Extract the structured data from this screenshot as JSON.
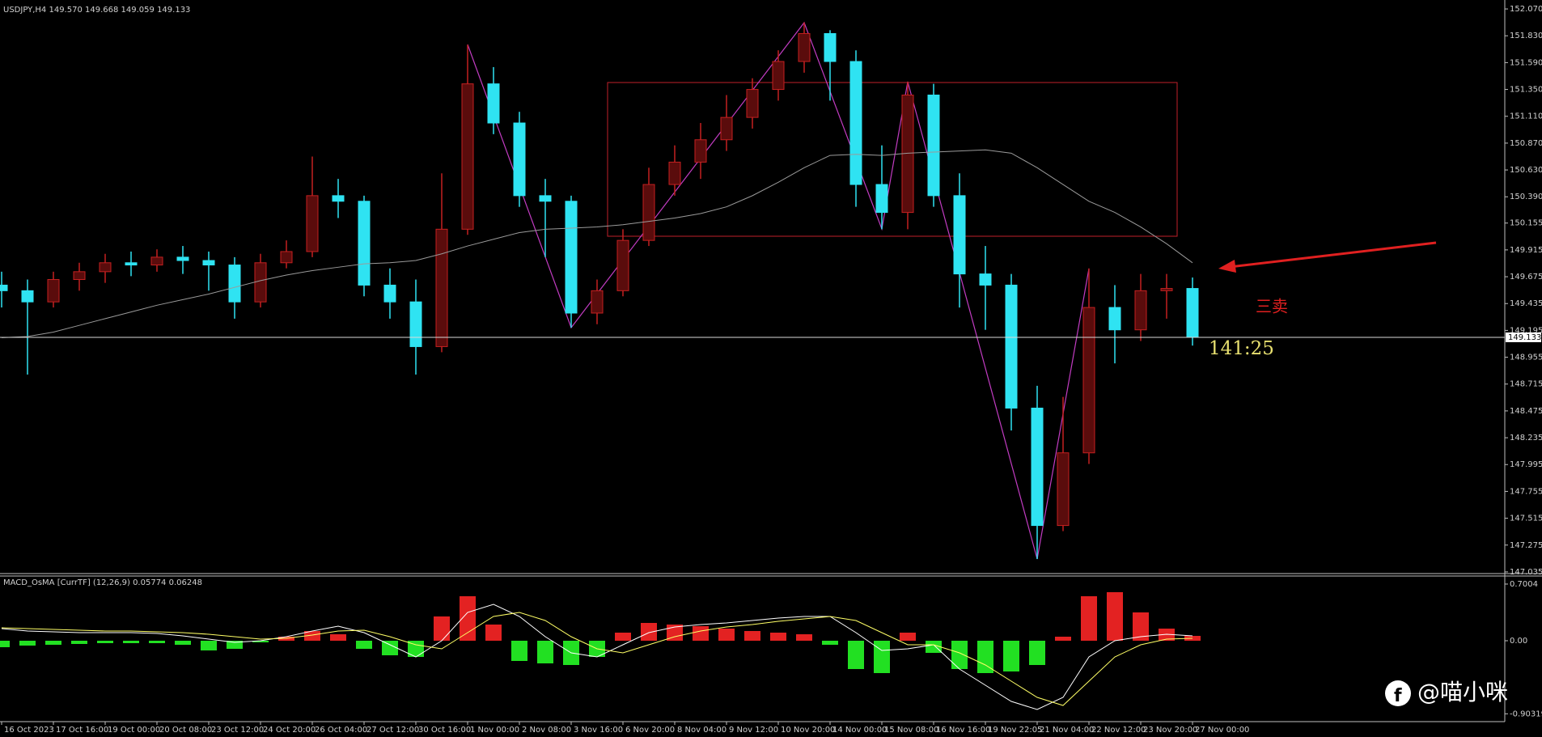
{
  "chart_data": {
    "type": "candlestick",
    "title": "USDJPY,H4  149.570 149.668 149.059 149.133",
    "categories": [
      "16 Oct 2023",
      null,
      "17 Oct 16:00",
      null,
      "19 Oct 00:00",
      null,
      "20 Oct 08:00",
      null,
      "23 Oct 12:00",
      null,
      "24 Oct 20:00",
      null,
      "26 Oct 04:00",
      null,
      "27 Oct 12:00",
      null,
      "30 Oct 16:00",
      null,
      "1 Nov 00:00",
      null,
      "2 Nov 08:00",
      null,
      "3 Nov 16:00",
      null,
      "6 Nov 20:00",
      null,
      "8 Nov 04:00",
      null,
      "9 Nov 12:00",
      null,
      "10 Nov 20:00",
      null,
      "14 Nov 00:00",
      null,
      "15 Nov 08:00",
      null,
      "16 Nov 16:00",
      null,
      "19 Nov 22:05",
      null,
      "21 Nov 04:00",
      null,
      "22 Nov 12:00",
      null,
      "23 Nov 20:00",
      null,
      "27 Nov 00:00"
    ],
    "open": [
      149.6,
      149.55,
      149.45,
      149.65,
      149.72,
      149.8,
      149.78,
      149.85,
      149.82,
      149.78,
      149.45,
      149.8,
      149.9,
      150.4,
      150.35,
      149.6,
      149.45,
      149.05,
      150.1,
      151.4,
      151.05,
      150.4,
      150.35,
      149.35,
      149.55,
      150.0,
      150.5,
      150.7,
      150.9,
      151.1,
      151.35,
      151.6,
      151.85,
      151.6,
      150.5,
      150.25,
      151.3,
      150.4,
      149.7,
      149.6,
      148.5,
      147.45,
      148.1,
      149.4,
      149.2,
      149.55,
      149.57
    ],
    "high": [
      149.72,
      149.65,
      149.72,
      149.8,
      149.88,
      149.9,
      149.92,
      149.95,
      149.9,
      149.85,
      149.88,
      150.0,
      150.75,
      150.55,
      150.4,
      149.75,
      149.65,
      150.6,
      151.75,
      151.55,
      151.15,
      150.55,
      150.4,
      149.65,
      150.1,
      150.65,
      150.85,
      151.05,
      151.3,
      151.45,
      151.7,
      151.95,
      151.88,
      151.7,
      150.85,
      151.42,
      151.4,
      150.6,
      149.95,
      149.7,
      148.7,
      148.6,
      149.75,
      149.6,
      149.7,
      149.7,
      149.668
    ],
    "low": [
      149.4,
      148.8,
      149.4,
      149.55,
      149.62,
      149.68,
      149.72,
      149.7,
      149.55,
      149.3,
      149.4,
      149.75,
      149.85,
      150.2,
      149.5,
      149.3,
      148.8,
      149.0,
      150.05,
      150.95,
      150.3,
      149.85,
      149.22,
      149.25,
      149.5,
      149.95,
      150.4,
      150.55,
      150.8,
      151.0,
      151.25,
      151.5,
      151.25,
      150.3,
      150.1,
      150.1,
      150.3,
      149.4,
      149.2,
      148.3,
      147.15,
      147.4,
      148.0,
      148.9,
      149.1,
      149.3,
      149.059
    ],
    "close": [
      149.55,
      149.45,
      149.65,
      149.72,
      149.8,
      149.78,
      149.85,
      149.82,
      149.78,
      149.45,
      149.8,
      149.9,
      150.4,
      150.35,
      149.6,
      149.45,
      149.05,
      150.1,
      151.4,
      151.05,
      150.4,
      150.35,
      149.35,
      149.55,
      150.0,
      150.5,
      150.7,
      150.9,
      151.1,
      151.35,
      151.6,
      151.85,
      151.6,
      150.5,
      150.25,
      151.3,
      150.4,
      149.7,
      149.6,
      148.5,
      147.45,
      148.1,
      149.4,
      149.2,
      149.55,
      149.57,
      149.133
    ],
    "up_color": "#c42020",
    "down_color": "#2fe3f2",
    "ma": {
      "color": "#9a9a9a",
      "values": [
        149.13,
        149.14,
        149.18,
        149.24,
        149.3,
        149.36,
        149.42,
        149.47,
        149.52,
        149.58,
        149.64,
        149.69,
        149.73,
        149.76,
        149.79,
        149.8,
        149.82,
        149.88,
        149.95,
        150.01,
        150.07,
        150.1,
        150.11,
        150.12,
        150.14,
        150.17,
        150.2,
        150.24,
        150.3,
        150.4,
        150.52,
        150.65,
        150.76,
        150.77,
        150.76,
        150.78,
        150.79,
        150.8,
        150.81,
        150.78,
        150.65,
        150.5,
        150.35,
        150.25,
        150.12,
        149.97,
        149.8
      ]
    },
    "ylim": [
      147.02,
      152.15
    ],
    "yticks": [
      {
        "value": 152.07,
        "label": "152.070"
      },
      {
        "value": 151.83,
        "label": "151.830"
      },
      {
        "value": 151.59,
        "label": "151.590"
      },
      {
        "value": 151.35,
        "label": "151.350"
      },
      {
        "value": 151.11,
        "label": "151.110"
      },
      {
        "value": 150.87,
        "label": "150.870"
      },
      {
        "value": 150.63,
        "label": "150.630"
      },
      {
        "value": 150.39,
        "label": "150.390"
      },
      150.155,
      149.915,
      149.675,
      149.435,
      149.195,
      148.955,
      148.715,
      148.475,
      148.235,
      147.995,
      147.755,
      147.515,
      147.275,
      147.035
    ],
    "grid": false,
    "annotations": [
      "三卖",
      "141:25"
    ],
    "watermark": "@喵小咪",
    "indicator": {
      "type": "macd",
      "title": "MACD_OsMA [CurrTF] (12,26,9) 0.05774 0.06248",
      "ylim": [
        -0.99,
        0.76
      ],
      "yticks": [
        0.7004,
        {
          "value": 0,
          "label": "0.00"
        },
        -0.90319
      ],
      "histogram": [
        -0.08,
        -0.06,
        -0.05,
        -0.04,
        -0.03,
        -0.03,
        -0.03,
        -0.05,
        -0.12,
        -0.1,
        -0.02,
        0.05,
        0.12,
        0.08,
        -0.1,
        -0.18,
        -0.2,
        0.3,
        0.55,
        0.2,
        -0.25,
        -0.28,
        -0.3,
        -0.2,
        0.1,
        0.22,
        0.2,
        0.18,
        0.15,
        0.12,
        0.1,
        0.08,
        -0.05,
        -0.35,
        -0.4,
        0.1,
        -0.15,
        -0.35,
        -0.4,
        -0.38,
        -0.3,
        0.05,
        0.55,
        0.6,
        0.35,
        0.15,
        0.06
      ],
      "positive_color": "#e32222",
      "negative_color": "#22e022",
      "macd": [
        0.15,
        0.12,
        0.11,
        0.1,
        0.1,
        0.1,
        0.09,
        0.06,
        0.02,
        -0.02,
        0.0,
        0.05,
        0.12,
        0.18,
        0.1,
        -0.05,
        -0.2,
        0.0,
        0.35,
        0.45,
        0.3,
        0.05,
        -0.15,
        -0.2,
        -0.05,
        0.1,
        0.17,
        0.2,
        0.22,
        0.25,
        0.28,
        0.3,
        0.3,
        0.1,
        -0.12,
        -0.1,
        -0.05,
        -0.35,
        -0.55,
        -0.75,
        -0.85,
        -0.7,
        -0.2,
        0.0,
        0.05,
        0.08,
        0.06
      ],
      "macd_color": "#ffffff",
      "signal": [
        0.16,
        0.15,
        0.14,
        0.13,
        0.12,
        0.12,
        0.11,
        0.1,
        0.08,
        0.05,
        0.02,
        0.03,
        0.07,
        0.12,
        0.13,
        0.05,
        -0.05,
        -0.1,
        0.1,
        0.3,
        0.35,
        0.25,
        0.05,
        -0.1,
        -0.15,
        -0.05,
        0.05,
        0.12,
        0.17,
        0.2,
        0.24,
        0.27,
        0.3,
        0.25,
        0.1,
        -0.05,
        -0.05,
        -0.15,
        -0.3,
        -0.5,
        -0.7,
        -0.8,
        -0.5,
        -0.2,
        -0.05,
        0.02,
        0.03
      ],
      "signal_color": "#ffff66"
    }
  }
}
